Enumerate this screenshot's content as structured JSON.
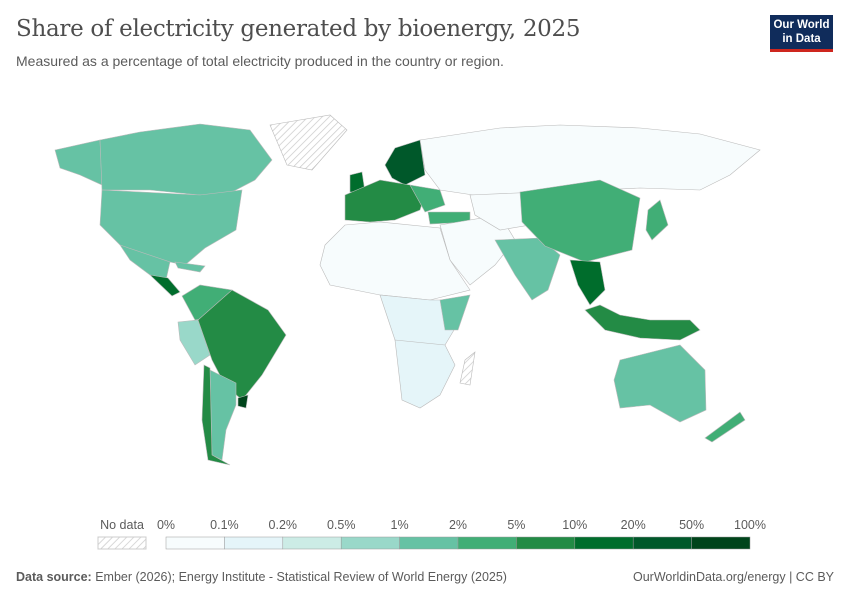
{
  "header": {
    "title": "Share of electricity generated by bioenergy, 2025",
    "subtitle": "Measured as a percentage of total electricity produced in the country or region.",
    "logo": "Our World in Data"
  },
  "legend": {
    "no_data_label": "No data",
    "ticks": [
      "0%",
      "0.1%",
      "0.2%",
      "0.5%",
      "1%",
      "2%",
      "5%",
      "10%",
      "20%",
      "50%",
      "100%"
    ],
    "bins": [
      {
        "range": "0-0.1%",
        "color": "#f7fcfd"
      },
      {
        "range": "0.1-0.2%",
        "color": "#e5f5f9"
      },
      {
        "range": "0.2-0.5%",
        "color": "#ccece6"
      },
      {
        "range": "0.5-1%",
        "color": "#99d8c9"
      },
      {
        "range": "1-2%",
        "color": "#66c2a4"
      },
      {
        "range": "2-5%",
        "color": "#41ae76"
      },
      {
        "range": "5-10%",
        "color": "#238b45"
      },
      {
        "range": "10-20%",
        "color": "#006d2c"
      },
      {
        "range": "20-50%",
        "color": "#00582a"
      },
      {
        "range": "50-100%",
        "color": "#00441b"
      }
    ]
  },
  "footer": {
    "source_label": "Data source:",
    "source_text": "Ember (2026); Energy Institute - Statistical Review of World Energy (2025)",
    "link": "OurWorldinData.org/energy | CC BY"
  }
}
